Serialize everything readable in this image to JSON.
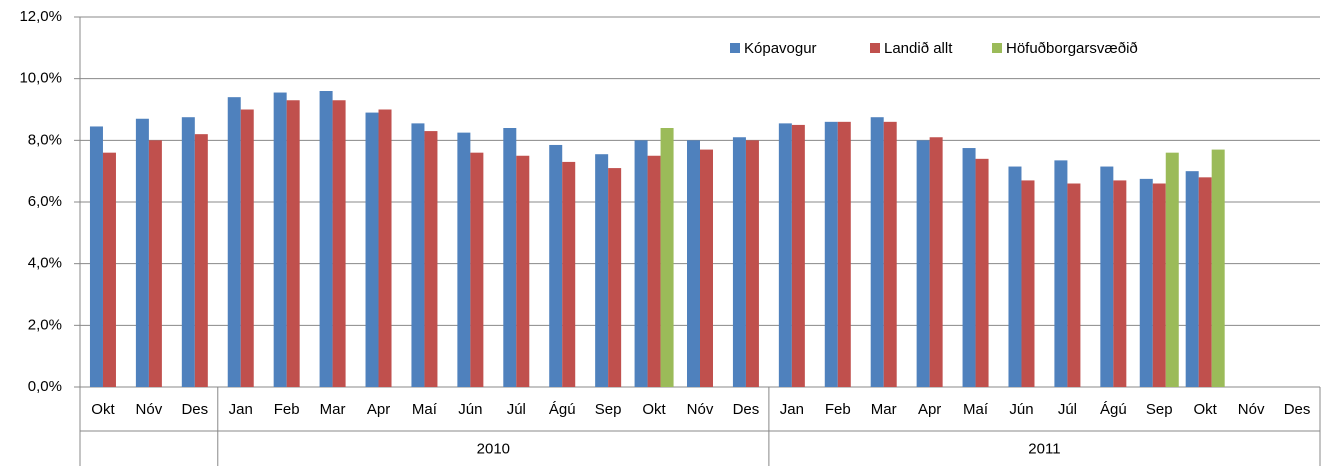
{
  "chart_data": {
    "type": "bar",
    "categories": [
      "Okt",
      "Nóv",
      "Des",
      "Jan",
      "Feb",
      "Mar",
      "Apr",
      "Maí",
      "Jún",
      "Júl",
      "Ágú",
      "Sep",
      "Okt",
      "Nóv",
      "Des",
      "Jan",
      "Feb",
      "Mar",
      "Apr",
      "Maí",
      "Jún",
      "Júl",
      "Ágú",
      "Sep",
      "Okt",
      "Nóv",
      "Des"
    ],
    "category_groups": [
      {
        "label": null,
        "size": 3
      },
      {
        "label": "2010",
        "size": 12
      },
      {
        "label": "2011",
        "size": 12
      }
    ],
    "series": [
      {
        "name": "Kópavogur",
        "color": "#4f81bd",
        "values": [
          8.45,
          8.7,
          8.75,
          9.4,
          9.55,
          9.6,
          8.9,
          8.55,
          8.25,
          8.4,
          7.85,
          7.55,
          8.0,
          8.0,
          8.1,
          8.55,
          8.6,
          8.75,
          8.0,
          7.75,
          7.15,
          7.35,
          7.15,
          6.75,
          7.0,
          null,
          null
        ]
      },
      {
        "name": "Landið allt",
        "color": "#c0504d",
        "values": [
          7.6,
          8.0,
          8.2,
          9.0,
          9.3,
          9.3,
          9.0,
          8.3,
          7.6,
          7.5,
          7.3,
          7.1,
          7.5,
          7.7,
          8.0,
          8.5,
          8.6,
          8.6,
          8.1,
          7.4,
          6.7,
          6.6,
          6.7,
          6.6,
          6.8,
          null,
          null
        ]
      },
      {
        "name": "Höfuðborgarsvæðið",
        "color": "#9bbb59",
        "values": [
          null,
          null,
          null,
          null,
          null,
          null,
          null,
          null,
          null,
          null,
          null,
          null,
          8.4,
          null,
          null,
          null,
          null,
          null,
          null,
          null,
          null,
          null,
          null,
          7.6,
          7.7,
          null,
          null
        ]
      }
    ],
    "ylim": [
      0,
      12
    ],
    "yticks": [
      {
        "value": 0,
        "label": "0,0%"
      },
      {
        "value": 2,
        "label": "2,0%"
      },
      {
        "value": 4,
        "label": "4,0%"
      },
      {
        "value": 6,
        "label": "6,0%"
      },
      {
        "value": 8,
        "label": "8,0%"
      },
      {
        "value": 10,
        "label": "10,0%"
      },
      {
        "value": 12,
        "label": "12,0%"
      }
    ],
    "grid": true,
    "legend": "top-right"
  }
}
